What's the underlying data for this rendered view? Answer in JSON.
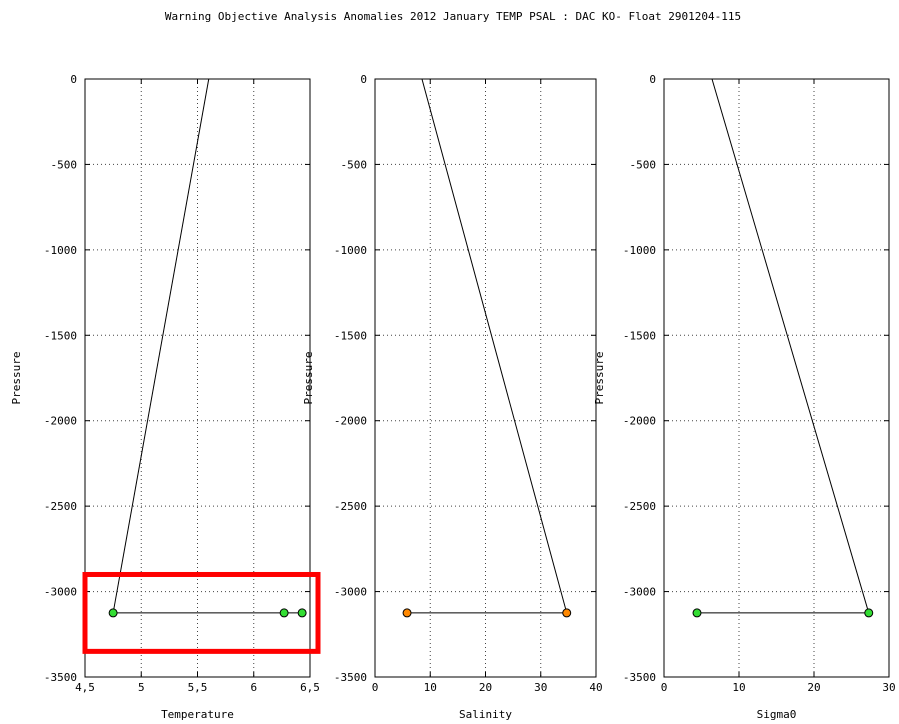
{
  "title": "Warning Objective Analysis Anomalies 2012 January TEMP PSAL :  DAC KO- Float 2901204-115",
  "colors": {
    "green_point": "#33dd33",
    "orange_point": "#ff8800",
    "highlight": "#ff0000",
    "line": "#000000",
    "grid": "#444444"
  },
  "chart_data": [
    {
      "type": "line",
      "xlabel": "Temperature",
      "ylabel": "Pressure",
      "xlim": [
        4.5,
        6.5
      ],
      "ylim": [
        -3500,
        0
      ],
      "xticks": [
        4.5,
        5,
        5.5,
        6,
        6.5
      ],
      "xtick_labels": [
        "4,5",
        "5",
        "5,5",
        "6",
        "6,5"
      ],
      "yticks": [
        0,
        -500,
        -1000,
        -1500,
        -2000,
        -2500,
        -3000,
        -3500
      ],
      "ytick_labels": [
        "0",
        "-500",
        "-1000",
        "-1500",
        "-2000",
        "-2500",
        "-3000",
        "-3500"
      ],
      "grid": true,
      "profile": {
        "x": [
          5.6,
          4.75
        ],
        "y": [
          0,
          -3125
        ]
      },
      "horizontal_line": {
        "x": [
          4.75,
          6.43
        ],
        "y": -3125
      },
      "points": [
        {
          "x": 4.75,
          "y": -3125,
          "color": "green"
        },
        {
          "x": 6.27,
          "y": -3125,
          "color": "green"
        },
        {
          "x": 6.43,
          "y": -3125,
          "color": "green"
        }
      ],
      "highlight_box": {
        "x": [
          4.5,
          6.5
        ],
        "y": [
          -3350,
          -2900
        ]
      }
    },
    {
      "type": "line",
      "xlabel": "Salinity",
      "ylabel": "Pressure",
      "xlim": [
        0,
        40
      ],
      "ylim": [
        -3500,
        0
      ],
      "xticks": [
        0,
        10,
        20,
        30,
        40
      ],
      "xtick_labels": [
        "0",
        "10",
        "20",
        "30",
        "40"
      ],
      "yticks": [
        0,
        -500,
        -1000,
        -1500,
        -2000,
        -2500,
        -3000,
        -3500
      ],
      "ytick_labels": [
        "0",
        "-500",
        "-1000",
        "-1500",
        "-2000",
        "-2500",
        "-3000",
        "-3500"
      ],
      "grid": true,
      "profile": {
        "x": [
          8.5,
          34.7
        ],
        "y": [
          0,
          -3125
        ]
      },
      "horizontal_line": {
        "x": [
          5.8,
          34.7
        ],
        "y": -3125
      },
      "points": [
        {
          "x": 5.8,
          "y": -3125,
          "color": "orange"
        },
        {
          "x": 34.7,
          "y": -3125,
          "color": "orange"
        }
      ]
    },
    {
      "type": "line",
      "xlabel": "Sigma0",
      "ylabel": "Pressure",
      "xlim": [
        0,
        30
      ],
      "ylim": [
        -3500,
        0
      ],
      "xticks": [
        0,
        10,
        20,
        30
      ],
      "xtick_labels": [
        "0",
        "10",
        "20",
        "30"
      ],
      "yticks": [
        0,
        -500,
        -1000,
        -1500,
        -2000,
        -2500,
        -3000,
        -3500
      ],
      "ytick_labels": [
        "0",
        "-500",
        "-1000",
        "-1500",
        "-2000",
        "-2500",
        "-3000",
        "-3500"
      ],
      "grid": true,
      "profile": {
        "x": [
          6.4,
          27.3
        ],
        "y": [
          0,
          -3125
        ]
      },
      "horizontal_line": {
        "x": [
          4.4,
          27.3
        ],
        "y": -3125
      },
      "points": [
        {
          "x": 4.4,
          "y": -3125,
          "color": "green"
        },
        {
          "x": 27.3,
          "y": -3125,
          "color": "green"
        }
      ]
    }
  ]
}
